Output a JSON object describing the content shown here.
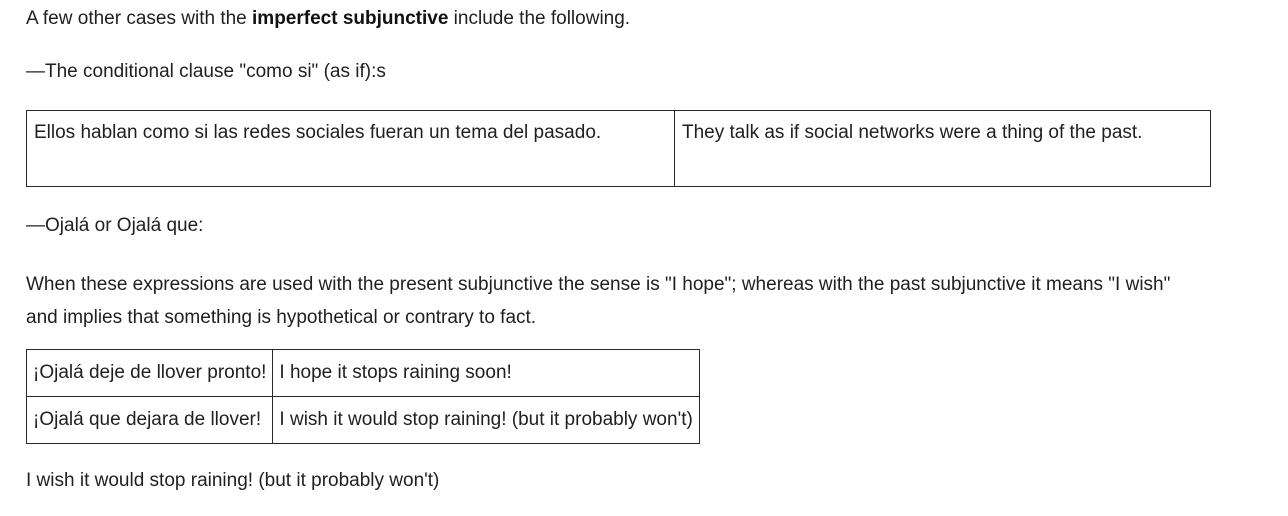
{
  "intro": {
    "before": "A few other cases with the ",
    "bold": "imperfect subjunctive",
    "after": " include the following."
  },
  "section1": {
    "heading": "—The conditional clause \"como si\" (as if):s",
    "table": {
      "rows": [
        {
          "spanish": "Ellos hablan como si las redes sociales fueran un tema del pasado.",
          "english": "They talk as if social networks were a thing of the past."
        }
      ]
    }
  },
  "section2": {
    "heading": "—Ojalá or Ojalá que:",
    "paragraph": "When these expressions are used with the present subjunctive the sense is \"I hope\"; whereas with the past subjunctive it means \"I wish\" and implies that something is hypothetical or contrary to fact.",
    "table": {
      "rows": [
        {
          "spanish": "¡Ojalá deje de llover pronto!",
          "english": "I hope it stops raining soon!"
        },
        {
          "spanish": "¡Ojalá que dejara de llover!",
          "english": "I wish it would stop raining! (but it probably won't)"
        }
      ]
    }
  },
  "trailing_text": "I wish it would stop raining! (but it probably won't)"
}
